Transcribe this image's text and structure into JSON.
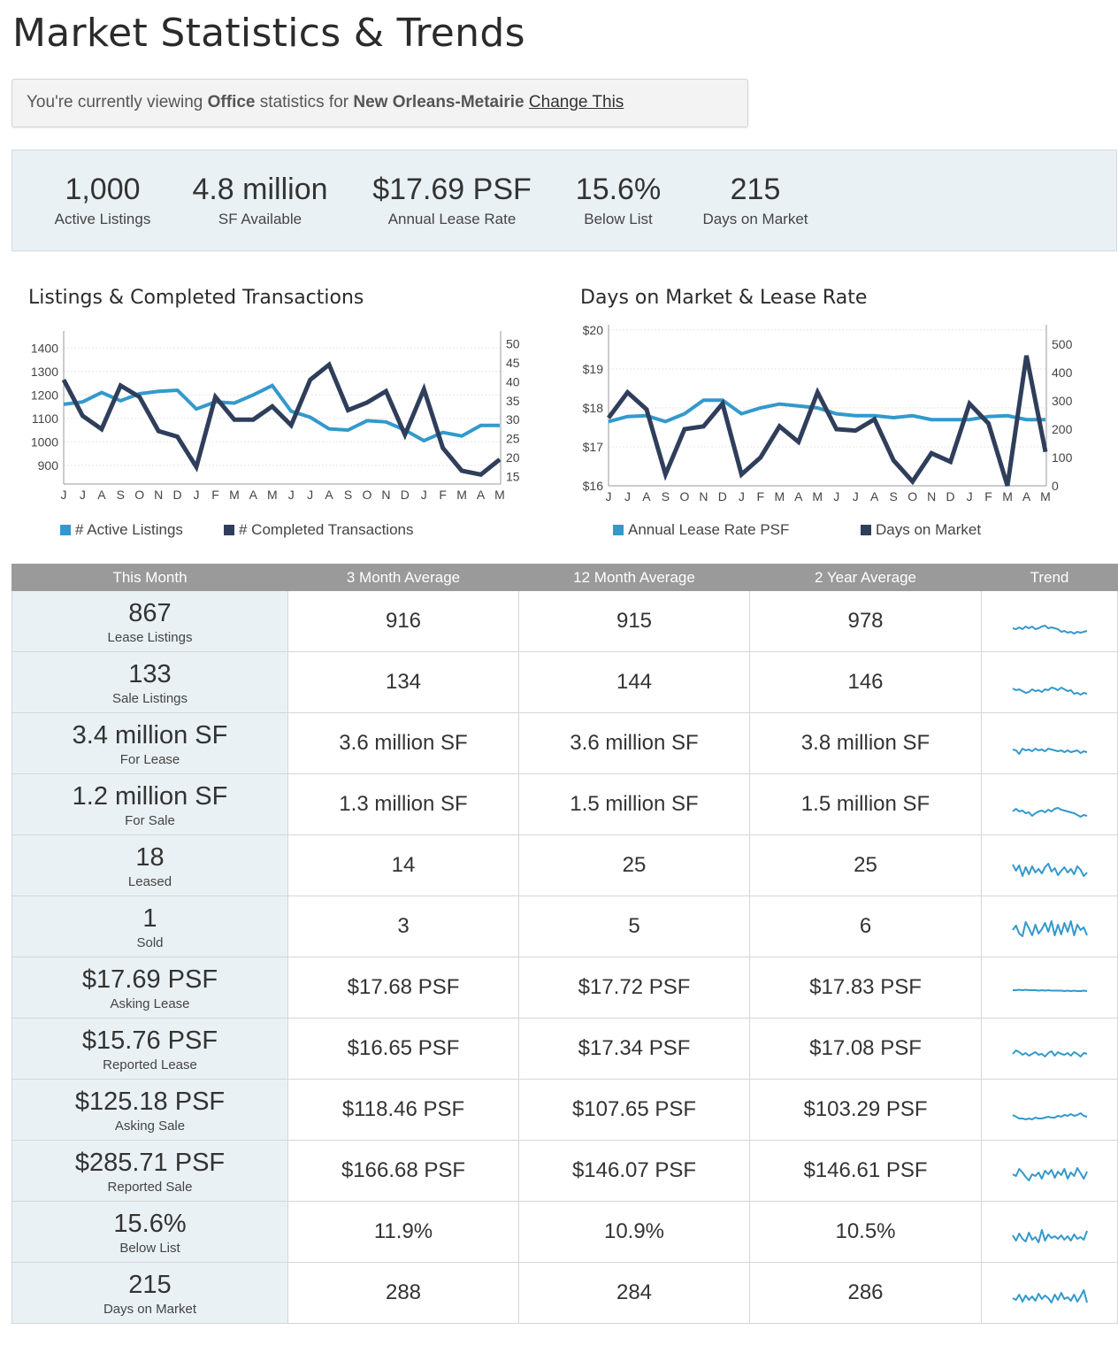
{
  "page": {
    "title": "Market Statistics & Trends"
  },
  "context": {
    "prefix": "You're currently viewing",
    "property_type": "Office",
    "middle": "statistics for",
    "market": "New Orleans-Metairie",
    "change_link": "Change This"
  },
  "summary": [
    {
      "value": "1,000",
      "label": "Active Listings"
    },
    {
      "value": "4.8 million",
      "label": "SF Available"
    },
    {
      "value": "$17.69 PSF",
      "label": "Annual Lease Rate"
    },
    {
      "value": "15.6%",
      "label": "Below List"
    },
    {
      "value": "215",
      "label": "Days on Market"
    }
  ],
  "colors": {
    "light_series": "#3399cc",
    "dark_series": "#2f3e5a",
    "summary_bg": "#eaf1f4",
    "table_header": "#9a9a9a"
  },
  "chart_data": [
    {
      "type": "line",
      "title": "Listings & Completed Transactions",
      "categories": [
        "J",
        "J",
        "A",
        "S",
        "O",
        "N",
        "D",
        "J",
        "F",
        "M",
        "A",
        "M",
        "J",
        "J",
        "A",
        "S",
        "O",
        "N",
        "D",
        "J",
        "F",
        "M",
        "A",
        "M"
      ],
      "left_axis": {
        "ylim": [
          820,
          1450
        ],
        "ticks": [
          "900",
          "1000",
          "1100",
          "1200",
          "1300",
          "1400"
        ],
        "tick_values": [
          900,
          1000,
          1100,
          1200,
          1300,
          1400
        ]
      },
      "right_axis": {
        "ylim": [
          13,
          52
        ],
        "ticks": [
          "15",
          "20",
          "25",
          "30",
          "35",
          "40",
          "45",
          "50"
        ],
        "tick_values": [
          15,
          20,
          25,
          30,
          35,
          40,
          45,
          50
        ]
      },
      "grid": true,
      "legend_position": "bottom",
      "series": [
        {
          "name": "# Active Listings",
          "axis": "left",
          "color": "#3399cc",
          "values": [
            1160,
            1170,
            1210,
            1175,
            1205,
            1215,
            1220,
            1140,
            1170,
            1165,
            1200,
            1240,
            1130,
            1105,
            1055,
            1050,
            1090,
            1085,
            1050,
            1005,
            1040,
            1025,
            1070,
            1070
          ]
        },
        {
          "name": "# Completed Transactions",
          "axis": "right",
          "color": "#2f3e5a",
          "values": [
            40.5,
            31,
            27.5,
            39,
            36,
            27,
            25.5,
            17.5,
            36,
            30,
            30,
            33.5,
            28.5,
            40.5,
            44.5,
            32.5,
            34.5,
            37.5,
            26,
            38,
            22.5,
            16.5,
            15.5,
            19.5
          ]
        }
      ]
    },
    {
      "type": "line",
      "title": "Days on Market & Lease Rate",
      "categories": [
        "J",
        "J",
        "A",
        "S",
        "O",
        "N",
        "D",
        "J",
        "F",
        "M",
        "A",
        "M",
        "J",
        "J",
        "A",
        "S",
        "O",
        "N",
        "D",
        "J",
        "F",
        "M",
        "A",
        "M"
      ],
      "left_axis": {
        "ylim": [
          16,
          20
        ],
        "ticks": [
          "$16",
          "$17",
          "$18",
          "$19",
          "$20"
        ],
        "tick_values": [
          16,
          17,
          18,
          19,
          20
        ]
      },
      "right_axis": {
        "ylim": [
          0,
          550
        ],
        "ticks": [
          "0",
          "100",
          "200",
          "300",
          "400",
          "500"
        ],
        "tick_values": [
          0,
          100,
          200,
          300,
          400,
          500
        ]
      },
      "grid": true,
      "legend_position": "bottom",
      "series": [
        {
          "name": "Annual Lease Rate PSF",
          "axis": "left",
          "color": "#3399cc",
          "values": [
            17.65,
            17.78,
            17.8,
            17.65,
            17.85,
            18.2,
            18.2,
            17.85,
            18.0,
            18.1,
            18.05,
            18.0,
            17.85,
            17.8,
            17.8,
            17.75,
            17.8,
            17.7,
            17.7,
            17.7,
            17.78,
            17.8,
            17.7,
            17.7
          ]
        },
        {
          "name": "Days on Market",
          "axis": "right",
          "color": "#2f3e5a",
          "values": [
            240,
            330,
            270,
            40,
            200,
            210,
            290,
            40,
            100,
            210,
            155,
            330,
            200,
            195,
            235,
            90,
            15,
            115,
            85,
            290,
            220,
            0,
            460,
            120
          ]
        }
      ]
    }
  ],
  "table": {
    "headers": [
      "This Month",
      "3 Month Average",
      "12 Month Average",
      "2 Year Average",
      "Trend"
    ],
    "rows": [
      {
        "value": "867",
        "label": "Lease Listings",
        "avg3": "916",
        "avg12": "915",
        "avg24": "978",
        "trend": [
          24,
          25,
          23,
          25,
          22,
          24,
          22,
          25,
          24,
          22,
          21,
          24,
          23,
          24,
          25,
          28,
          27,
          29,
          28,
          30,
          28,
          29,
          28,
          27
        ]
      },
      {
        "value": "133",
        "label": "Sale Listings",
        "avg3": "134",
        "avg12": "144",
        "avg24": "146",
        "trend": [
          23,
          25,
          24,
          26,
          28,
          27,
          24,
          26,
          25,
          27,
          24,
          25,
          22,
          23,
          25,
          22,
          24,
          26,
          25,
          29,
          28,
          30,
          28,
          29
        ]
      },
      {
        "value": "3.4 million SF",
        "label": "For Lease",
        "avg3": "3.6 million SF",
        "avg12": "3.6 million SF",
        "avg24": "3.8 million SF",
        "trend": [
          23,
          24,
          28,
          22,
          24,
          23,
          25,
          22,
          24,
          23,
          25,
          22,
          23,
          24,
          25,
          24,
          26,
          24,
          26,
          25,
          24,
          27,
          25,
          26
        ]
      },
      {
        "value": "1.2 million SF",
        "label": "For Sale",
        "avg3": "1.3 million SF",
        "avg12": "1.5 million SF",
        "avg24": "1.5 million SF",
        "trend": [
          24,
          21,
          24,
          23,
          26,
          25,
          29,
          26,
          24,
          23,
          25,
          22,
          24,
          21,
          20,
          22,
          23,
          24,
          25,
          26,
          28,
          30,
          28,
          29
        ]
      },
      {
        "value": "18",
        "label": "Leased",
        "avg3": "14",
        "avg12": "25",
        "avg24": "25",
        "trend": [
          15,
          22,
          16,
          28,
          18,
          26,
          17,
          24,
          20,
          25,
          18,
          14,
          23,
          19,
          27,
          22,
          18,
          24,
          20,
          26,
          17,
          21,
          28,
          24
        ]
      },
      {
        "value": "1",
        "label": "Sold",
        "avg3": "3",
        "avg12": "5",
        "avg24": "6",
        "trend": [
          20,
          15,
          24,
          27,
          11,
          18,
          26,
          14,
          24,
          19,
          12,
          22,
          10,
          26,
          14,
          25,
          12,
          22,
          10,
          26,
          14,
          20,
          17,
          26
        ]
      },
      {
        "value": "$17.69 PSF",
        "label": "Asking Lease",
        "avg3": "$17.68 PSF",
        "avg12": "$17.72 PSF",
        "avg24": "$17.83 PSF",
        "trend": [
          19,
          19,
          18.5,
          19,
          18.5,
          19,
          19,
          19,
          19.5,
          19,
          19.5,
          19,
          19.5,
          19.5,
          19.5,
          19.5,
          20,
          19.5,
          20,
          19.5,
          20,
          20,
          19.5,
          20
        ]
      },
      {
        "value": "$15.76 PSF",
        "label": "Reported Lease",
        "avg3": "$16.65 PSF",
        "avg12": "$17.34 PSF",
        "avg24": "$17.08 PSF",
        "trend": [
          22,
          18,
          20,
          23,
          21,
          24,
          22,
          20,
          23,
          22,
          25,
          21,
          19,
          24,
          20,
          22,
          23,
          21,
          24,
          20,
          22,
          25,
          21,
          22
        ]
      },
      {
        "value": "$125.18 PSF",
        "label": "Asking Sale",
        "avg3": "$118.46 PSF",
        "avg12": "$107.65 PSF",
        "avg24": "$103.29 PSF",
        "trend": [
          22,
          24,
          26,
          26,
          27,
          26,
          27,
          25,
          26,
          26,
          25,
          24,
          25,
          25,
          23,
          24,
          22,
          23,
          21,
          23,
          22,
          20,
          23,
          24
        ]
      },
      {
        "value": "$285.71 PSF",
        "label": "Reported Sale",
        "avg3": "$166.68 PSF",
        "avg12": "$146.07 PSF",
        "avg24": "$146.61 PSF",
        "trend": [
          20,
          22,
          14,
          18,
          23,
          27,
          20,
          22,
          18,
          25,
          16,
          20,
          15,
          24,
          17,
          21,
          14,
          25,
          18,
          22,
          13,
          19,
          25,
          17
        ]
      },
      {
        "value": "15.6%",
        "label": "Below List",
        "avg3": "11.9%",
        "avg12": "10.9%",
        "avg24": "10.5%",
        "trend": [
          20,
          26,
          18,
          24,
          27,
          17,
          25,
          22,
          28,
          14,
          26,
          19,
          23,
          21,
          24,
          20,
          25,
          21,
          26,
          19,
          24,
          22,
          25,
          15
        ]
      },
      {
        "value": "215",
        "label": "Days on Market",
        "avg3": "288",
        "avg12": "284",
        "avg24": "286",
        "trend": [
          22,
          24,
          18,
          26,
          19,
          24,
          20,
          25,
          17,
          23,
          19,
          22,
          27,
          18,
          24,
          16,
          23,
          21,
          25,
          18,
          26,
          20,
          13,
          27
        ]
      }
    ]
  }
}
